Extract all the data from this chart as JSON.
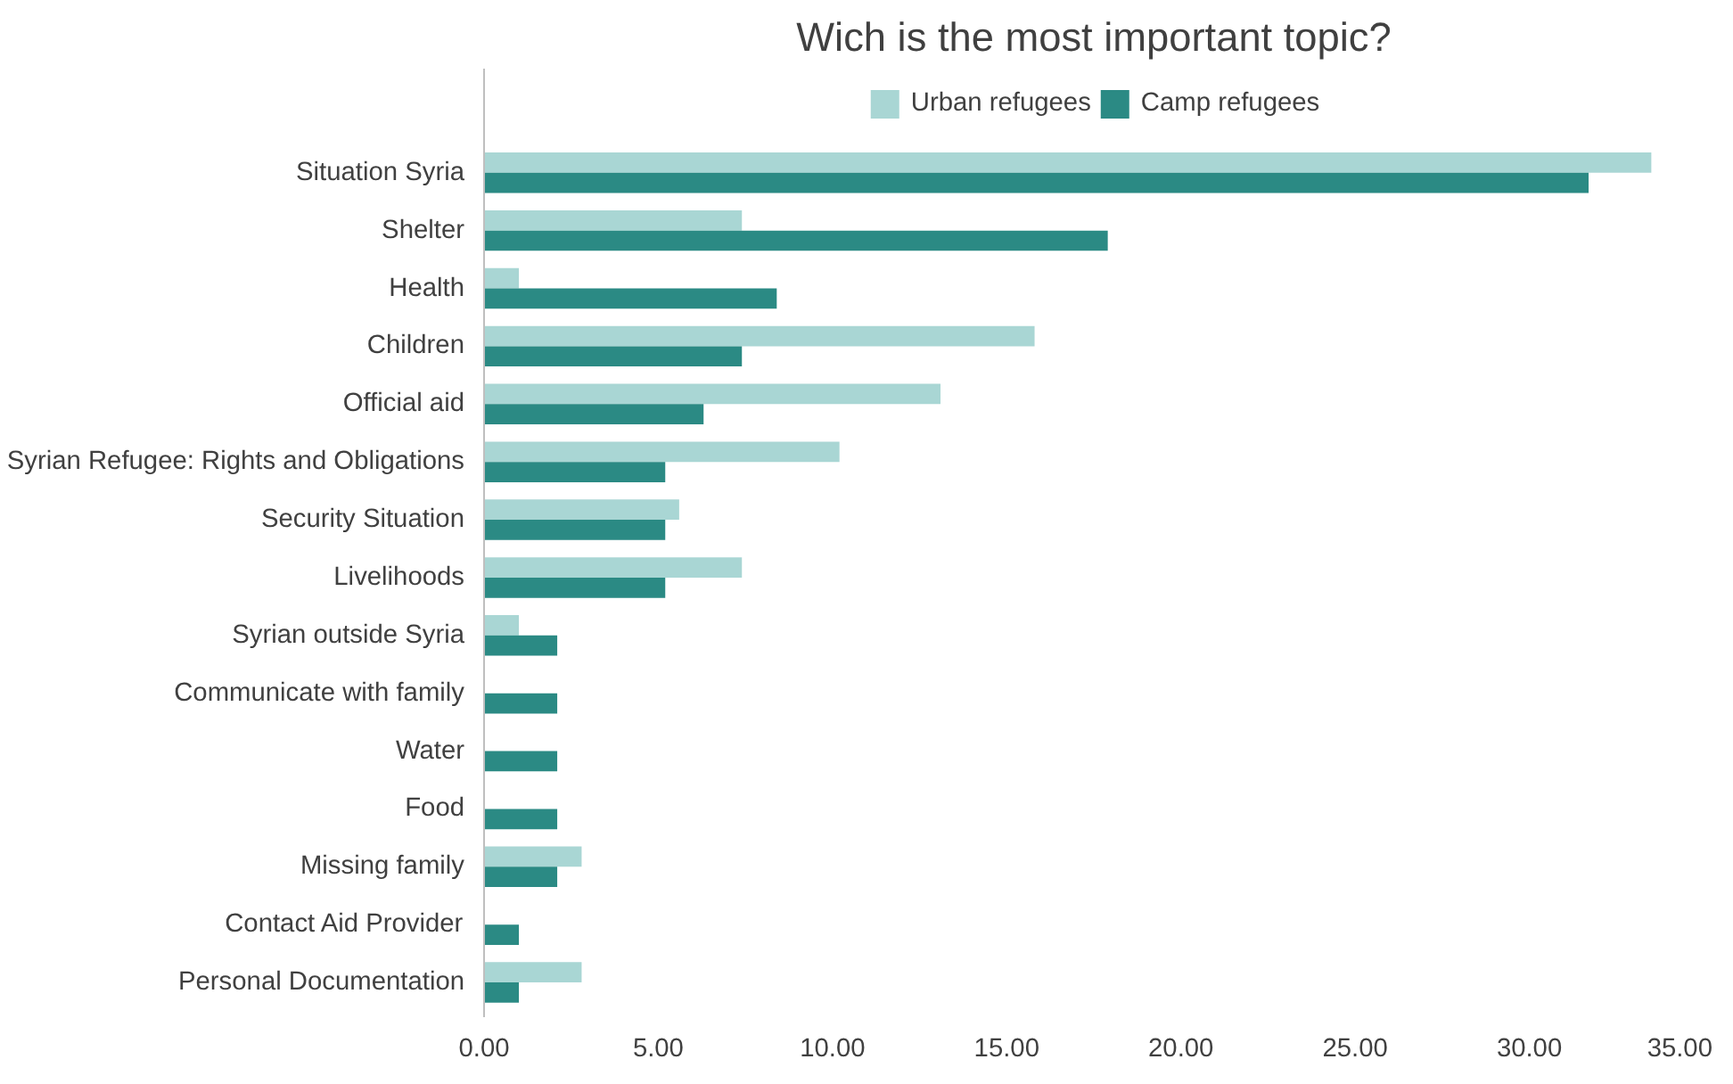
{
  "chart_data": {
    "type": "bar",
    "orientation": "horizontal",
    "title": "Wich is the most important topic?",
    "categories": [
      "Situation Syria",
      "Shelter",
      "Health",
      "Children",
      "Official aid",
      "Syrian Refugee: Rights and Obligations",
      "Security Situation",
      "Livelihoods",
      "Syrian outside Syria",
      "Communicate with family",
      "Water",
      "Food",
      "Missing family",
      "Contact Aid Provider",
      "Personal Documentation"
    ],
    "series": [
      {
        "name": "Urban refugees",
        "color": "#a9d6d4",
        "values": [
          33.5,
          7.4,
          1.0,
          15.8,
          13.1,
          10.2,
          5.6,
          7.4,
          1.0,
          0,
          0,
          0,
          2.8,
          0,
          2.8
        ]
      },
      {
        "name": "Camp refugees",
        "color": "#2b8a84",
        "values": [
          31.7,
          17.9,
          8.4,
          7.4,
          6.3,
          5.2,
          5.2,
          5.2,
          2.1,
          2.1,
          2.1,
          2.1,
          2.1,
          1.0,
          1.0
        ]
      }
    ],
    "xlim": [
      0,
      35
    ],
    "xticks": [
      {
        "value": 0,
        "label": "0.00"
      },
      {
        "value": 5,
        "label": "5.00"
      },
      {
        "value": 10,
        "label": "10.00"
      },
      {
        "value": 15,
        "label": "15.00"
      },
      {
        "value": 20,
        "label": "20.00"
      },
      {
        "value": 25,
        "label": "25.00"
      },
      {
        "value": 30,
        "label": "30.00"
      },
      {
        "value": 35,
        "label": "35.00"
      }
    ],
    "grid": false,
    "legend": "top"
  }
}
